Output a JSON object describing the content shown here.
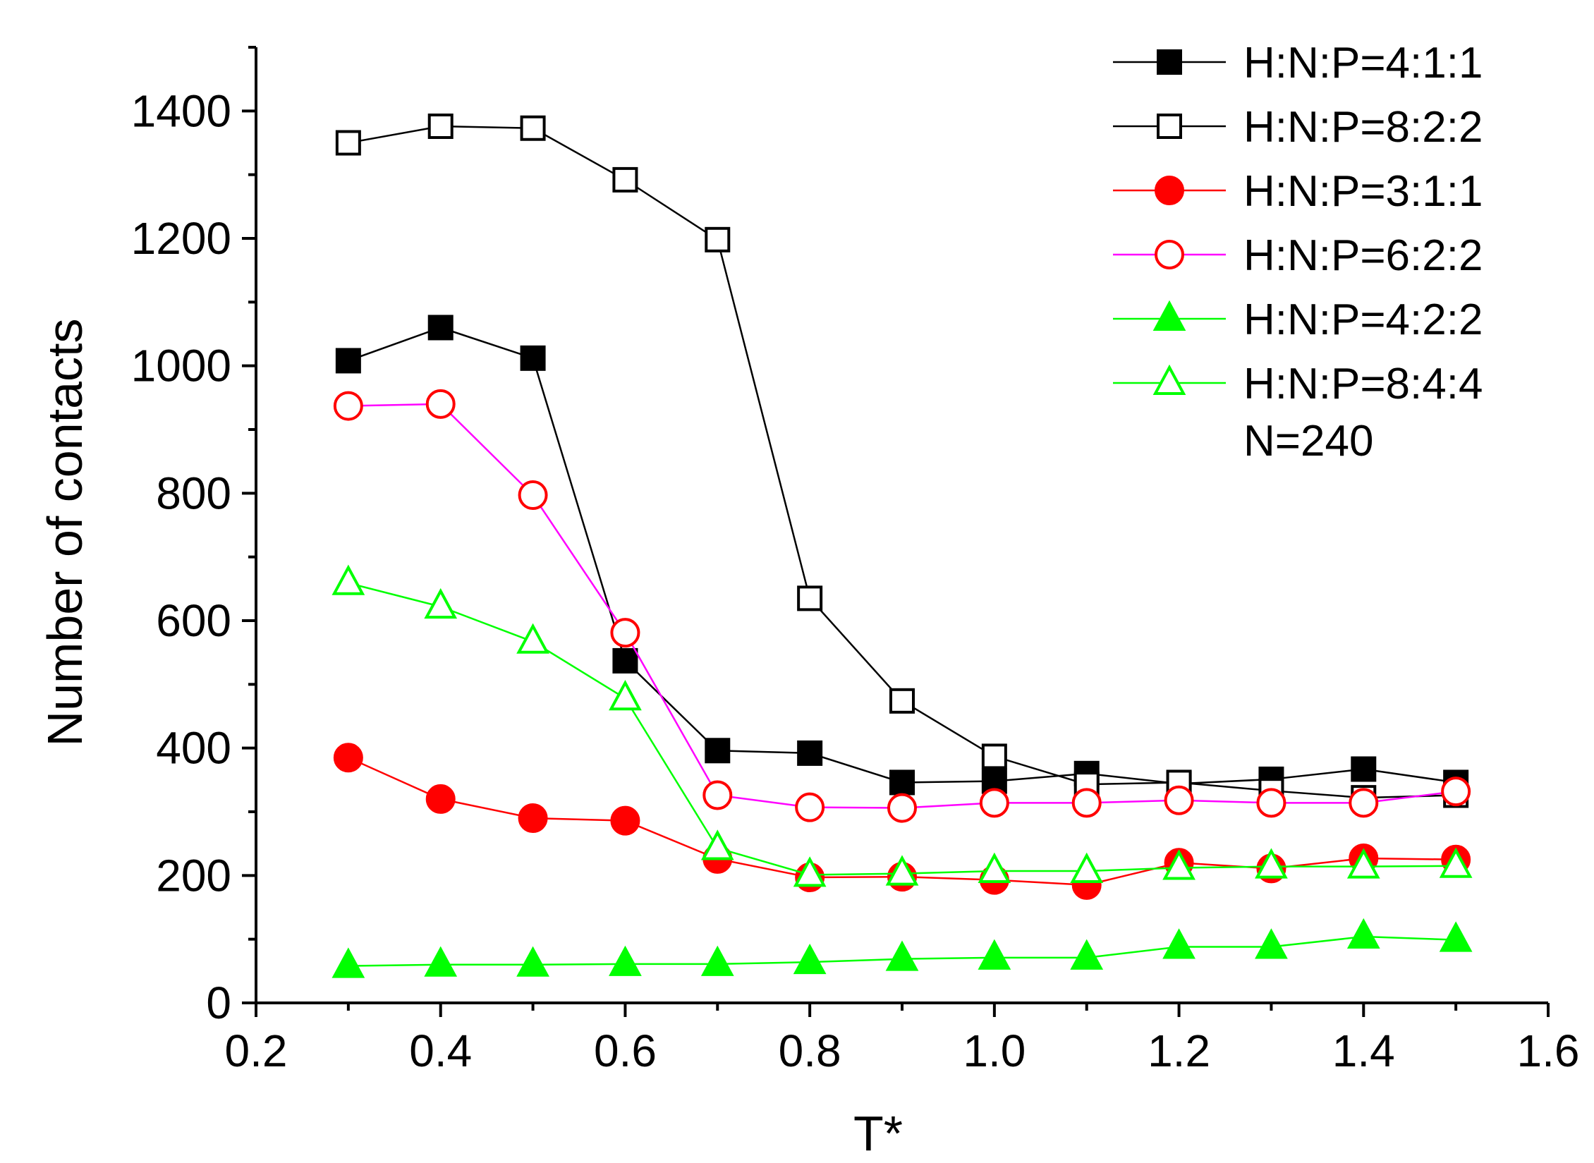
{
  "chart_data": {
    "type": "line",
    "title": "",
    "xlabel": "T*",
    "ylabel": "Number of contacts",
    "xlim": [
      0.2,
      1.6
    ],
    "ylim": [
      0,
      1500
    ],
    "x_ticks": [
      "0.2",
      "0.4",
      "0.6",
      "0.8",
      "1.0",
      "1.2",
      "1.4",
      "1.6"
    ],
    "y_ticks": [
      "0",
      "200",
      "400",
      "600",
      "800",
      "1000",
      "1200",
      "1400"
    ],
    "grid": false,
    "legend_position": "top-right",
    "annotation": "N=240",
    "x": [
      0.3,
      0.4,
      0.5,
      0.6,
      0.7,
      0.8,
      0.9,
      1.0,
      1.1,
      1.2,
      1.3,
      1.4,
      1.5
    ],
    "series": [
      {
        "name": "H:N:P=4:1:1",
        "marker": "square",
        "filled": true,
        "marker_color": "#000000",
        "line_color": "#000000",
        "values": [
          1008,
          1060,
          1012,
          537,
          396,
          392,
          346,
          348,
          360,
          344,
          351,
          367,
          346
        ]
      },
      {
        "name": "H:N:P=8:2:2",
        "marker": "square",
        "filled": false,
        "marker_color": "#000000",
        "line_color": "#000000",
        "values": [
          1350,
          1376,
          1373,
          1292,
          1198,
          635,
          474,
          387,
          343,
          346,
          333,
          322,
          326
        ]
      },
      {
        "name": "H:N:P=3:1:1",
        "marker": "circle",
        "filled": true,
        "marker_color": "#ff0000",
        "line_color": "#ff0000",
        "values": [
          385,
          320,
          290,
          286,
          226,
          197,
          198,
          193,
          185,
          220,
          211,
          227,
          225
        ]
      },
      {
        "name": "H:N:P=6:2:2",
        "marker": "circle",
        "filled": false,
        "marker_color": "#ff0000",
        "line_color": "#ff00ff",
        "values": [
          937,
          940,
          797,
          581,
          326,
          307,
          306,
          314,
          314,
          318,
          314,
          314,
          332
        ]
      },
      {
        "name": "H:N:P=4:2:2",
        "marker": "triangle",
        "filled": true,
        "marker_color": "#00ff00",
        "line_color": "#00ff00",
        "values": [
          58,
          60,
          60,
          61,
          61,
          64,
          69,
          71,
          71,
          88,
          88,
          104,
          99
        ]
      },
      {
        "name": "H:N:P=8:4:4",
        "marker": "triangle",
        "filled": false,
        "marker_color": "#00ff00",
        "line_color": "#00ff00",
        "values": [
          659,
          622,
          567,
          478,
          243,
          201,
          203,
          207,
          207,
          212,
          214,
          214,
          215
        ]
      }
    ]
  }
}
